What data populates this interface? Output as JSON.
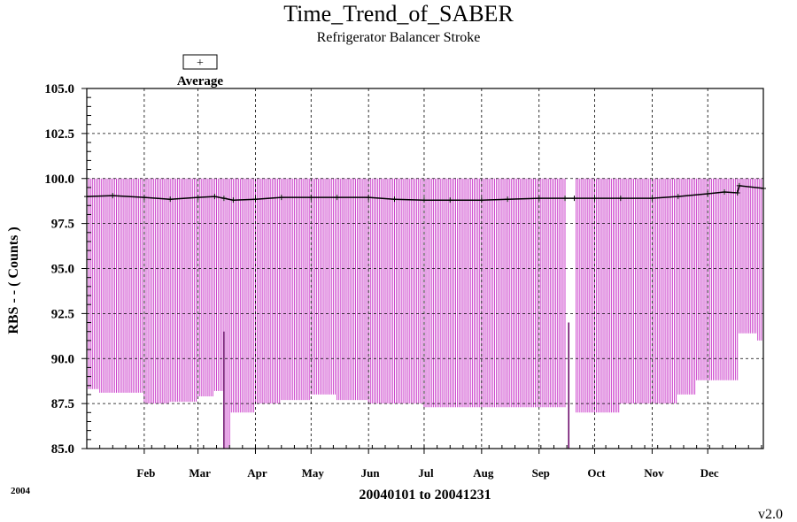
{
  "chart_data": {
    "type": "line",
    "title": "Time_Trend_of_SABER",
    "subtitle": "Refrigerator Balancer Stroke",
    "legend": {
      "symbol": "+",
      "label": "Average",
      "placement": "top-left"
    },
    "ylabel": "RBS  - - ( Counts )",
    "xlabel": "20040101 to 20041231",
    "year_label": "2004",
    "version_label": "v2.0",
    "ylim": [
      85.0,
      105.0
    ],
    "yticks": [
      "85.0",
      "87.5",
      "90.0",
      "92.5",
      "95.0",
      "97.5",
      "100.0",
      "102.5",
      "105.0"
    ],
    "ytick_values": [
      85.0,
      87.5,
      90.0,
      92.5,
      95.0,
      97.5,
      100.0,
      102.5,
      105.0
    ],
    "xlim": [
      "2004-01-01",
      "2004-12-31"
    ],
    "xtick_labels": [
      "Feb",
      "Mar",
      "Apr",
      "May",
      "Jun",
      "Jul",
      "Aug",
      "Sep",
      "Oct",
      "Nov",
      "Dec"
    ],
    "xtick_dates": [
      "2004-02-01",
      "2004-03-01",
      "2004-04-01",
      "2004-05-01",
      "2004-06-01",
      "2004-07-01",
      "2004-08-01",
      "2004-09-01",
      "2004-10-01",
      "2004-11-01",
      "2004-12-01"
    ],
    "grid": true,
    "colors": {
      "range_bar": "#cc44cc",
      "average": "#000000",
      "grid": "#000000"
    },
    "series": [
      {
        "name": "Average",
        "points": [
          [
            "2004-01-01",
            99.0
          ],
          [
            "2004-01-15",
            99.05
          ],
          [
            "2004-02-01",
            98.95
          ],
          [
            "2004-02-15",
            98.85
          ],
          [
            "2004-03-01",
            98.95
          ],
          [
            "2004-03-10",
            99.0
          ],
          [
            "2004-03-15",
            98.9
          ],
          [
            "2004-03-20",
            98.8
          ],
          [
            "2004-04-01",
            98.85
          ],
          [
            "2004-04-15",
            98.95
          ],
          [
            "2004-05-01",
            98.95
          ],
          [
            "2004-05-15",
            98.95
          ],
          [
            "2004-06-01",
            98.95
          ],
          [
            "2004-06-15",
            98.85
          ],
          [
            "2004-07-01",
            98.8
          ],
          [
            "2004-07-15",
            98.8
          ],
          [
            "2004-08-01",
            98.8
          ],
          [
            "2004-08-15",
            98.85
          ],
          [
            "2004-09-01",
            98.9
          ],
          [
            "2004-09-15",
            98.9
          ],
          [
            "2004-09-20",
            98.9
          ],
          [
            "2004-10-01",
            98.9
          ],
          [
            "2004-10-15",
            98.9
          ],
          [
            "2004-11-01",
            98.9
          ],
          [
            "2004-11-15",
            99.0
          ],
          [
            "2004-12-01",
            99.15
          ],
          [
            "2004-12-10",
            99.25
          ],
          [
            "2004-12-17",
            99.2
          ],
          [
            "2004-12-18",
            99.6
          ],
          [
            "2004-12-31",
            99.45
          ]
        ]
      }
    ],
    "range_bars": {
      "max": 100.0,
      "min_by_period": [
        [
          "2004-01-01",
          88.3
        ],
        [
          "2004-01-08",
          88.1
        ],
        [
          "2004-01-20",
          88.1
        ],
        [
          "2004-02-01",
          87.5
        ],
        [
          "2004-02-15",
          87.6
        ],
        [
          "2004-03-01",
          87.9
        ],
        [
          "2004-03-10",
          88.2
        ],
        [
          "2004-03-16",
          85.0
        ],
        [
          "2004-03-19",
          87.0
        ],
        [
          "2004-04-01",
          87.5
        ],
        [
          "2004-04-15",
          87.7
        ],
        [
          "2004-05-01",
          88.0
        ],
        [
          "2004-05-15",
          87.7
        ],
        [
          "2004-06-01",
          87.5
        ],
        [
          "2004-07-01",
          87.3
        ],
        [
          "2004-08-01",
          87.3
        ],
        [
          "2004-09-01",
          87.3
        ],
        [
          "2004-09-18",
          85.0
        ],
        [
          "2004-09-21",
          87.0
        ],
        [
          "2004-10-01",
          87.0
        ],
        [
          "2004-10-15",
          87.5
        ],
        [
          "2004-11-01",
          87.5
        ],
        [
          "2004-11-15",
          88.0
        ],
        [
          "2004-11-25",
          88.8
        ],
        [
          "2004-12-05",
          88.8
        ],
        [
          "2004-12-18",
          91.4
        ],
        [
          "2004-12-28",
          91.0
        ]
      ],
      "gaps": [
        [
          "2004-09-16",
          "2004-09-20"
        ]
      ],
      "spikes": [
        [
          "2004-03-15",
          91.5
        ],
        [
          "2004-09-17",
          92.0
        ]
      ]
    }
  }
}
